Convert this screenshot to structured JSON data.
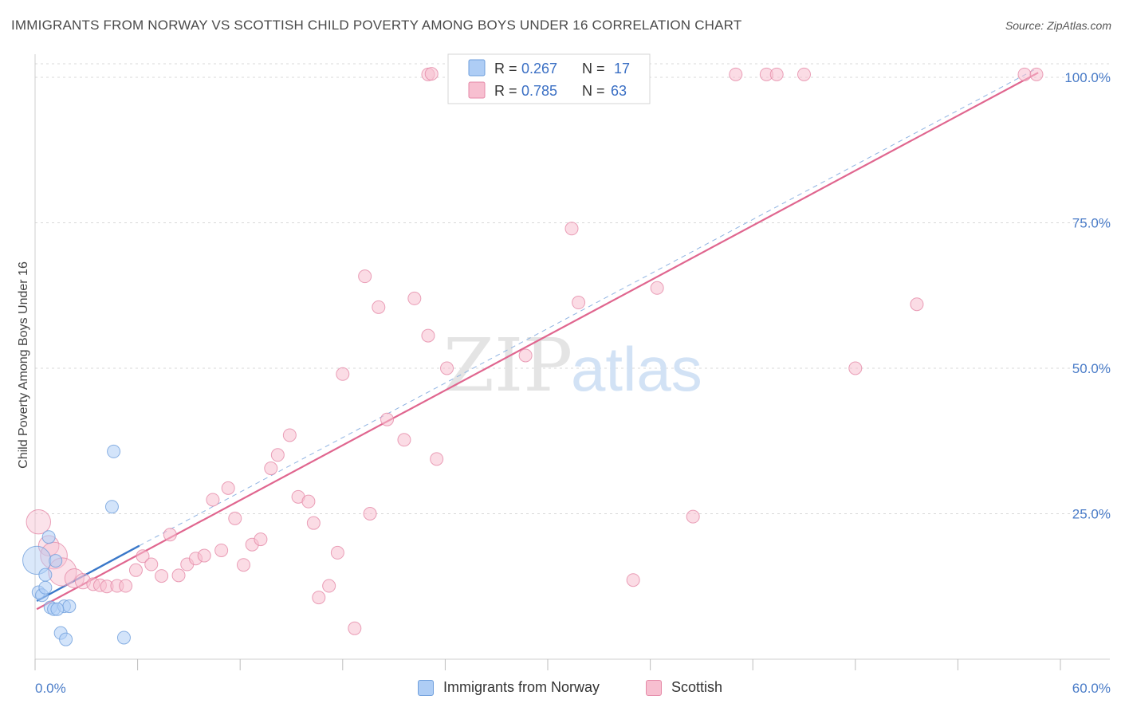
{
  "header": {
    "title": "IMMIGRANTS FROM NORWAY VS SCOTTISH CHILD POVERTY AMONG BOYS UNDER 16 CORRELATION CHART",
    "source": "Source: ZipAtlas.com"
  },
  "watermark": {
    "zip": "ZIP",
    "atlas": "atlas"
  },
  "colors": {
    "norway_fill": "#aecdf5",
    "norway_stroke": "#6f9fdc",
    "norway_line": "#3a78c9",
    "scottish_fill": "#f7bfd0",
    "scottish_stroke": "#e58aa8",
    "scottish_line": "#e0668f",
    "tick_color": "#4a7cc8",
    "grid": "#d8d8d8"
  },
  "legend": {
    "rows": [
      {
        "r_label": "R = ",
        "r_value": "0.267",
        "n_label": "N = ",
        "n_value": "17"
      },
      {
        "r_label": "R = ",
        "r_value": "0.785",
        "n_label": "N = ",
        "n_value": "63"
      }
    ]
  },
  "bottom_legend": {
    "norway": "Immigrants from Norway",
    "scottish": "Scottish"
  },
  "chart_data": {
    "type": "scatter",
    "xlabel": "",
    "ylabel": "Child Poverty Among Boys Under 16",
    "xlim": [
      0,
      60
    ],
    "ylim": [
      0,
      102
    ],
    "x_tick_labels": {
      "min": "0.0%",
      "max": "60.0%"
    },
    "y_ticks": [
      {
        "value": 25,
        "label": "25.0%"
      },
      {
        "value": 50,
        "label": "50.0%"
      },
      {
        "value": 75,
        "label": "75.0%"
      },
      {
        "value": 100,
        "label": "100.0%"
      }
    ],
    "grid": true,
    "legend_position": "top-center",
    "series": [
      {
        "name": "Immigrants from Norway",
        "r": 0.267,
        "n": 17,
        "trend": {
          "x0": 0.1,
          "y0": 10.0,
          "x1": 6.1,
          "y1": 19.5,
          "style": "solid"
        },
        "trend_extension": {
          "x0": 6.1,
          "y0": 19.5,
          "x1": 58.6,
          "y1": 101.5,
          "style": "dashed"
        },
        "points": [
          {
            "x": 0.1,
            "y": 17.0,
            "s": 2.2
          },
          {
            "x": 0.2,
            "y": 11.5,
            "s": 1
          },
          {
            "x": 0.4,
            "y": 11.0,
            "s": 1
          },
          {
            "x": 0.6,
            "y": 14.5,
            "s": 1
          },
          {
            "x": 0.6,
            "y": 12.3,
            "s": 1
          },
          {
            "x": 0.8,
            "y": 21.0,
            "s": 1
          },
          {
            "x": 0.9,
            "y": 8.9,
            "s": 1
          },
          {
            "x": 1.1,
            "y": 8.6,
            "s": 1
          },
          {
            "x": 1.2,
            "y": 16.9,
            "s": 1
          },
          {
            "x": 1.5,
            "y": 4.5,
            "s": 1
          },
          {
            "x": 1.7,
            "y": 9.1,
            "s": 1
          },
          {
            "x": 1.8,
            "y": 3.4,
            "s": 1
          },
          {
            "x": 2.0,
            "y": 9.1,
            "s": 1
          },
          {
            "x": 4.5,
            "y": 26.2,
            "s": 1
          },
          {
            "x": 4.6,
            "y": 35.7,
            "s": 1
          },
          {
            "x": 5.2,
            "y": 3.7,
            "s": 1
          },
          {
            "x": 1.3,
            "y": 8.6,
            "s": 1
          }
        ]
      },
      {
        "name": "Scottish",
        "r": 0.785,
        "n": 63,
        "trend": {
          "x0": 0.1,
          "y0": 8.6,
          "x1": 58.7,
          "y1": 100.8,
          "style": "solid"
        },
        "points": [
          {
            "x": 0.2,
            "y": 23.6,
            "s": 1.9
          },
          {
            "x": 0.8,
            "y": 19.5,
            "s": 1.6
          },
          {
            "x": 1.1,
            "y": 17.8,
            "s": 2.1
          },
          {
            "x": 1.6,
            "y": 15.0,
            "s": 2.2
          },
          {
            "x": 2.3,
            "y": 13.9,
            "s": 1.5
          },
          {
            "x": 2.8,
            "y": 13.4,
            "s": 1.2
          },
          {
            "x": 3.4,
            "y": 12.9,
            "s": 1
          },
          {
            "x": 3.8,
            "y": 12.7,
            "s": 1
          },
          {
            "x": 4.2,
            "y": 12.5,
            "s": 1
          },
          {
            "x": 4.8,
            "y": 12.6,
            "s": 1
          },
          {
            "x": 5.3,
            "y": 12.6,
            "s": 1
          },
          {
            "x": 5.9,
            "y": 15.3,
            "s": 1
          },
          {
            "x": 6.3,
            "y": 17.7,
            "s": 1
          },
          {
            "x": 6.8,
            "y": 16.3,
            "s": 1
          },
          {
            "x": 7.4,
            "y": 14.3,
            "s": 1
          },
          {
            "x": 7.9,
            "y": 21.4,
            "s": 1
          },
          {
            "x": 8.4,
            "y": 14.4,
            "s": 1
          },
          {
            "x": 8.9,
            "y": 16.3,
            "s": 1
          },
          {
            "x": 9.4,
            "y": 17.3,
            "s": 1
          },
          {
            "x": 9.9,
            "y": 17.8,
            "s": 1
          },
          {
            "x": 10.4,
            "y": 27.4,
            "s": 1
          },
          {
            "x": 10.9,
            "y": 18.7,
            "s": 1
          },
          {
            "x": 11.3,
            "y": 29.4,
            "s": 1
          },
          {
            "x": 11.7,
            "y": 24.2,
            "s": 1
          },
          {
            "x": 12.2,
            "y": 16.2,
            "s": 1
          },
          {
            "x": 12.7,
            "y": 19.7,
            "s": 1
          },
          {
            "x": 13.2,
            "y": 20.6,
            "s": 1
          },
          {
            "x": 13.8,
            "y": 32.8,
            "s": 1
          },
          {
            "x": 14.2,
            "y": 35.1,
            "s": 1
          },
          {
            "x": 14.9,
            "y": 38.5,
            "s": 1
          },
          {
            "x": 15.4,
            "y": 27.9,
            "s": 1
          },
          {
            "x": 16.0,
            "y": 27.1,
            "s": 1
          },
          {
            "x": 16.3,
            "y": 23.4,
            "s": 1
          },
          {
            "x": 16.6,
            "y": 10.6,
            "s": 1
          },
          {
            "x": 17.2,
            "y": 12.6,
            "s": 1
          },
          {
            "x": 17.7,
            "y": 18.3,
            "s": 1
          },
          {
            "x": 18.0,
            "y": 49.0,
            "s": 1
          },
          {
            "x": 18.7,
            "y": 5.3,
            "s": 1
          },
          {
            "x": 19.3,
            "y": 65.8,
            "s": 1
          },
          {
            "x": 19.6,
            "y": 25.0,
            "s": 1
          },
          {
            "x": 20.1,
            "y": 60.5,
            "s": 1
          },
          {
            "x": 20.6,
            "y": 41.2,
            "s": 1
          },
          {
            "x": 21.6,
            "y": 37.7,
            "s": 1
          },
          {
            "x": 22.2,
            "y": 62.0,
            "s": 1
          },
          {
            "x": 23.0,
            "y": 55.6,
            "s": 1
          },
          {
            "x": 23.0,
            "y": 100.5,
            "s": 1
          },
          {
            "x": 23.5,
            "y": 34.4,
            "s": 1
          },
          {
            "x": 24.1,
            "y": 50.0,
            "s": 1
          },
          {
            "x": 28.7,
            "y": 52.2,
            "s": 1
          },
          {
            "x": 31.4,
            "y": 74.0,
            "s": 1
          },
          {
            "x": 31.8,
            "y": 61.3,
            "s": 1
          },
          {
            "x": 35.0,
            "y": 13.6,
            "s": 1
          },
          {
            "x": 36.4,
            "y": 63.8,
            "s": 1
          },
          {
            "x": 38.5,
            "y": 24.5,
            "s": 1
          },
          {
            "x": 41.0,
            "y": 100.5,
            "s": 1
          },
          {
            "x": 42.8,
            "y": 100.5,
            "s": 1
          },
          {
            "x": 43.4,
            "y": 100.5,
            "s": 1
          },
          {
            "x": 45.0,
            "y": 100.5,
            "s": 1
          },
          {
            "x": 48.0,
            "y": 50.0,
            "s": 1
          },
          {
            "x": 51.6,
            "y": 61.0,
            "s": 1
          },
          {
            "x": 57.9,
            "y": 100.5,
            "s": 1
          },
          {
            "x": 58.6,
            "y": 100.5,
            "s": 1
          },
          {
            "x": 23.2,
            "y": 100.6,
            "s": 1
          }
        ]
      }
    ]
  }
}
